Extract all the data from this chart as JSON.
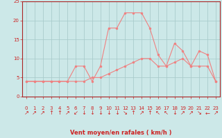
{
  "xlabel": "Vent moyen/en rafales ( km/h )",
  "background_color": "#cce8e8",
  "grid_color": "#aacccc",
  "line_color": "#f08080",
  "hours": [
    0,
    1,
    2,
    3,
    4,
    5,
    6,
    7,
    8,
    9,
    10,
    11,
    12,
    13,
    14,
    15,
    16,
    17,
    18,
    19,
    20,
    21,
    22,
    23
  ],
  "wind_avg": [
    4,
    4,
    4,
    4,
    4,
    4,
    4,
    4,
    5,
    5,
    6,
    7,
    8,
    9,
    10,
    10,
    8,
    8,
    9,
    10,
    8,
    8,
    8,
    4
  ],
  "wind_gust": [
    4,
    4,
    4,
    4,
    4,
    4,
    8,
    8,
    4,
    8,
    18,
    18,
    22,
    22,
    22,
    18,
    11,
    8,
    14,
    12,
    8,
    12,
    11,
    4
  ],
  "wind_dirs": [
    "↗",
    "↗",
    "↗",
    "↑",
    "↑",
    "↗",
    "↙",
    "↓",
    "↓",
    "↓",
    "↓",
    "↓",
    "↘",
    "↑",
    "↗",
    "↑",
    "↖",
    "↖",
    "↓",
    "↗",
    "↗",
    "↘",
    "←",
    "↗"
  ],
  "ylim": [
    0,
    25
  ],
  "xlim": [
    -0.5,
    23.5
  ],
  "yticks": [
    0,
    5,
    10,
    15,
    20,
    25
  ],
  "tick_color": "#cc2222",
  "label_fontsize": 6,
  "tick_fontsize": 5,
  "arrow_fontsize": 6
}
